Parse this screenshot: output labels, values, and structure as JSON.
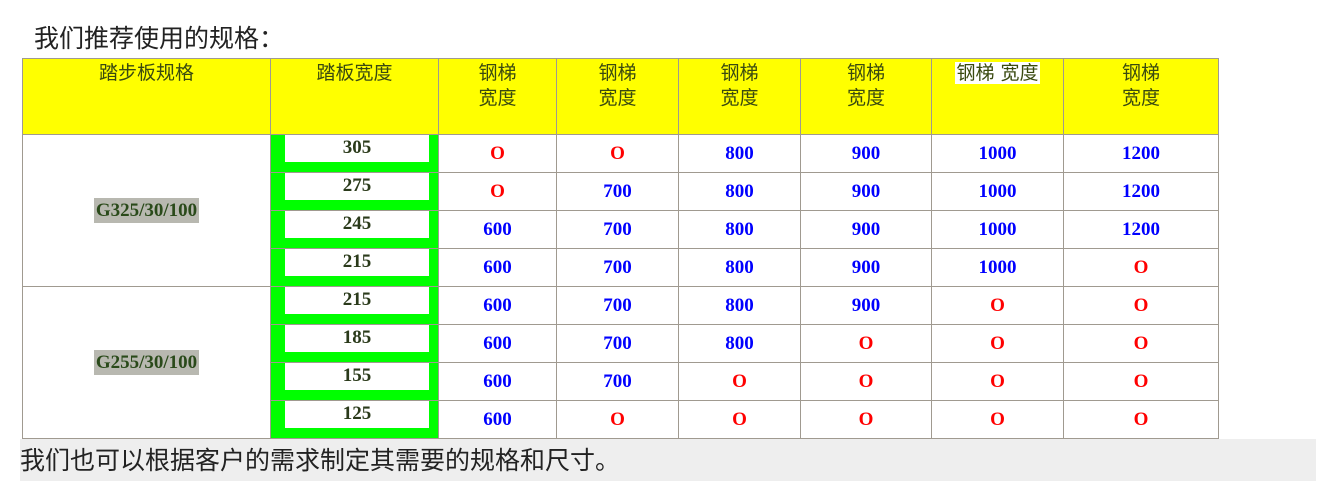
{
  "title": "我们推荐使用的规格：",
  "headers": [
    "踏步板规格",
    "踏板宽度",
    "钢梯\n宽度",
    "钢梯\n宽度",
    "钢梯\n宽度",
    "钢梯\n宽度",
    "钢梯 宽度",
    "钢梯\n宽度"
  ],
  "groups": [
    {
      "spec": "G325/30/100",
      "rows": [
        {
          "tread": "305",
          "values": [
            "O",
            "O",
            "800",
            "900",
            "1000",
            "1200"
          ]
        },
        {
          "tread": "275",
          "values": [
            "O",
            "700",
            "800",
            "900",
            "1000",
            "1200"
          ]
        },
        {
          "tread": "245",
          "values": [
            "600",
            "700",
            "800",
            "900",
            "1000",
            "1200"
          ]
        },
        {
          "tread": "215",
          "values": [
            "600",
            "700",
            "800",
            "900",
            "1000",
            "O"
          ]
        }
      ]
    },
    {
      "spec": "G255/30/100",
      "rows": [
        {
          "tread": "215",
          "values": [
            "600",
            "700",
            "800",
            "900",
            "O",
            "O"
          ]
        },
        {
          "tread": "185",
          "values": [
            "600",
            "700",
            "800",
            "O",
            "O",
            "O"
          ]
        },
        {
          "tread": "155",
          "values": [
            "600",
            "700",
            "O",
            "O",
            "O",
            "O"
          ]
        },
        {
          "tread": "125",
          "values": [
            "600",
            "O",
            "O",
            "O",
            "O",
            "O"
          ]
        }
      ]
    }
  ],
  "footer": "我们也可以根据客户的需求制定其需要的规格和尺寸。",
  "colors": {
    "header_bg": "#ffff00",
    "tread_border": "#00ff00",
    "available": "#0000ff",
    "unavailable": "#ff0000"
  }
}
